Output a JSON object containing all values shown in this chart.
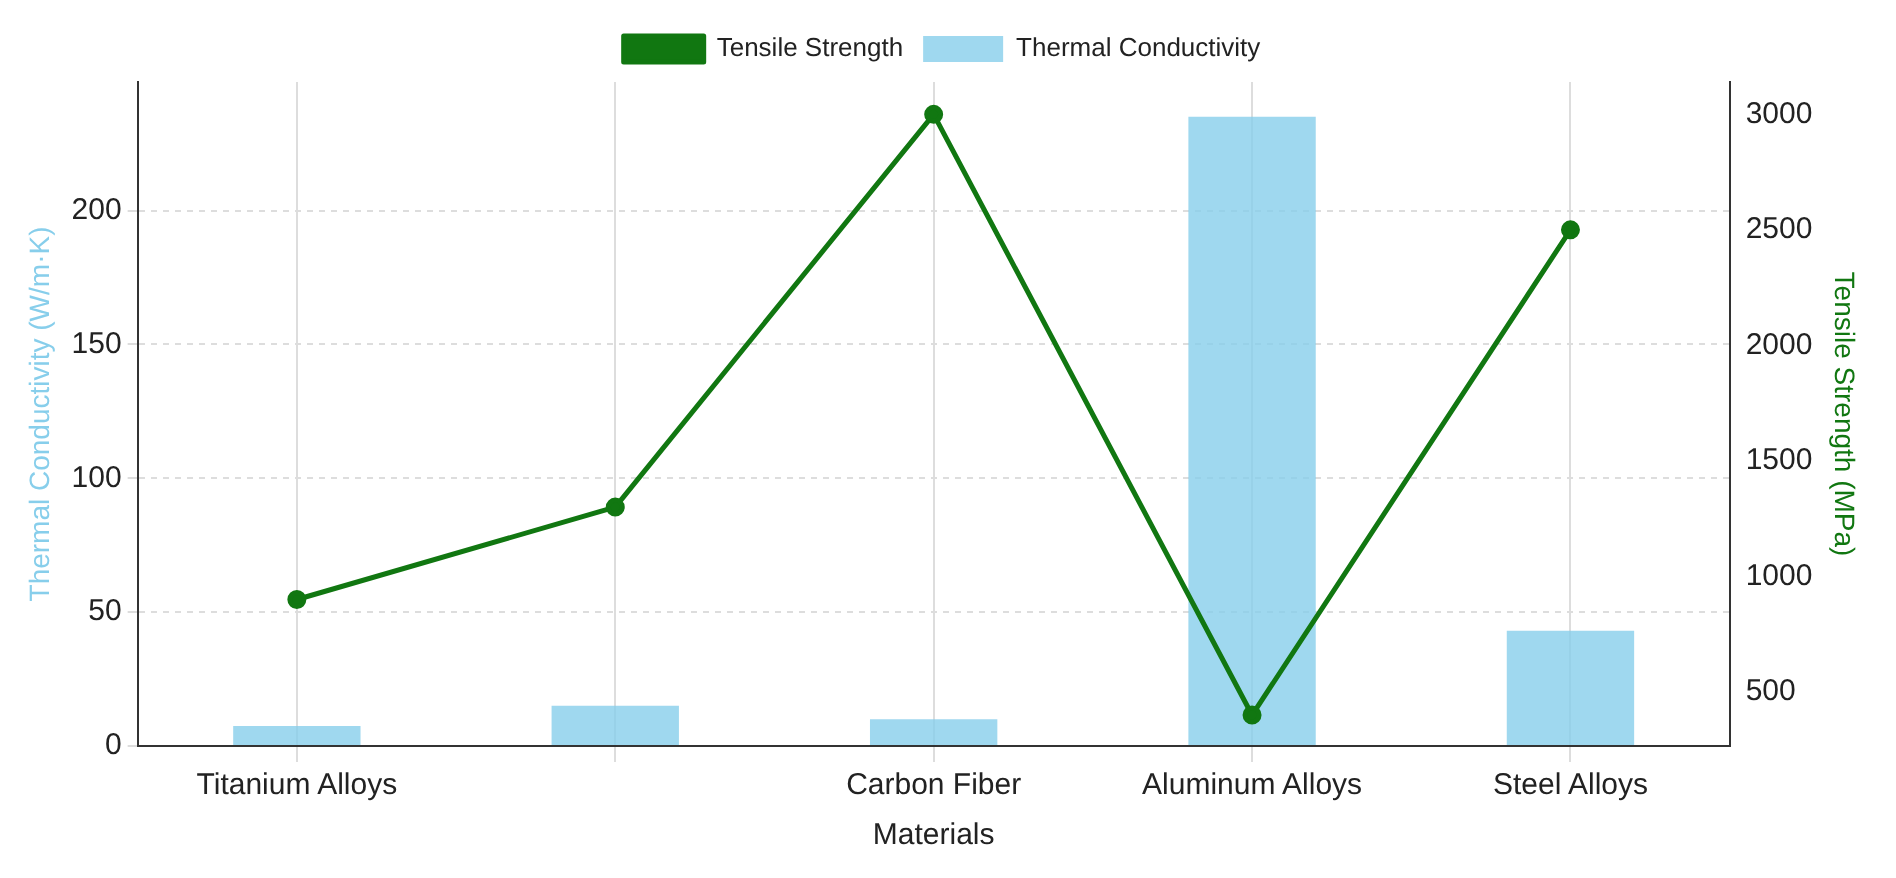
{
  "chart_data": {
    "type": "bar",
    "xlabel": "Materials",
    "ylabel": "Thermal Conductivity (W/m·K)",
    "y2label": "Tensile Strength (MPa)",
    "categories": [
      "Titanium Alloys",
      null,
      "Carbon Fiber",
      "Aluminum Alloys",
      "Steel Alloys"
    ],
    "series": [
      {
        "name": "Thermal Conductivity",
        "color": "#87ceeb",
        "values": [
          7.5,
          15,
          10,
          235,
          43
        ]
      },
      {
        "name": "Tensile Strength",
        "type": "line",
        "axis": "y2",
        "color": "#117711",
        "values": [
          900,
          1300,
          3000,
          400,
          2500
        ]
      }
    ],
    "ylim": [
      0,
      248
    ],
    "yticks": [
      0,
      50,
      100,
      150,
      200
    ],
    "y2lim": [
      266,
      3140
    ],
    "y2ticks": [
      500,
      1000,
      1500,
      2000,
      2500,
      3000
    ],
    "grid": true,
    "legend": "top",
    "marker": "circle",
    "line_style": "solid"
  }
}
